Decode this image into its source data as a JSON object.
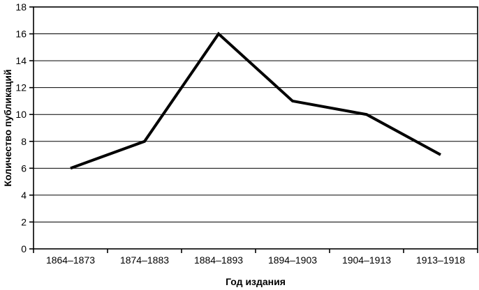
{
  "chart_data": {
    "type": "line",
    "title": "",
    "categories": [
      "1864–1873",
      "1874–1883",
      "1884–1893",
      "1894–1903",
      "1904–1913",
      "1913–1918"
    ],
    "series": [
      {
        "name": "Количество публикаций",
        "values": [
          6,
          8,
          16,
          11,
          10,
          7
        ]
      }
    ],
    "xlabel": "Год издания",
    "ylabel": "Количество публикаций",
    "ylim": [
      0,
      18
    ],
    "ytick_step": 2,
    "yticks": [
      0,
      2,
      4,
      6,
      8,
      10,
      12,
      14,
      16,
      18
    ],
    "grid": "horizontal",
    "legend_position": "none",
    "line_color": "#000000",
    "axis_color": "#000000",
    "background_color": "#ffffff"
  }
}
